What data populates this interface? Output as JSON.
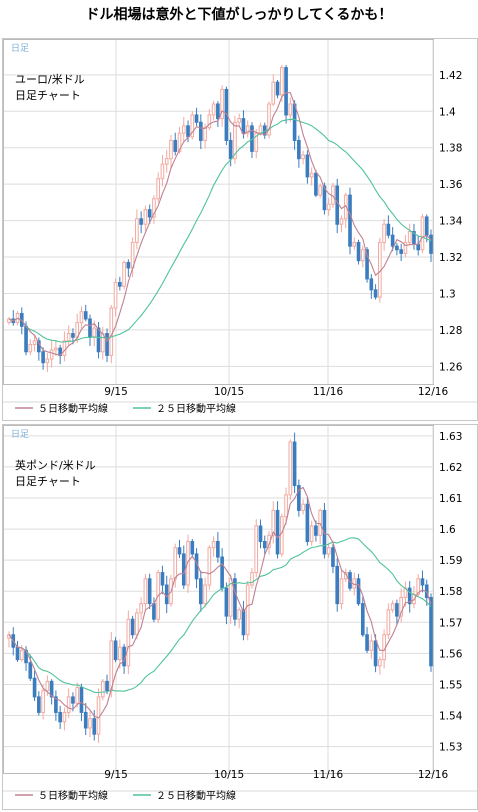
{
  "headline": "ドル相場は意外と下値がしっかりしてくるかも！",
  "colors": {
    "up": "#f2a9a0",
    "down": "#3b7dbf",
    "ma5": "#c08090",
    "ma25": "#4fc39a",
    "grid": "#dddddd",
    "tag": "#7fb2da"
  },
  "chart_data": [
    {
      "type": "candlestick",
      "tag": "日足",
      "caption_line1": "ユーロ/米ドル",
      "caption_line2": "日足チャート",
      "x_labels": [
        "9/15",
        "10/15",
        "11/16",
        "12/16"
      ],
      "y_ticks": [
        "1.26",
        "1.28",
        "1.3",
        "1.32",
        "1.34",
        "1.36",
        "1.38",
        "1.4",
        "1.42"
      ],
      "ylim": [
        1.2525,
        1.4375
      ],
      "legend": [
        "５日移動平均線",
        "２５日移動平均線"
      ],
      "close": [
        1.286,
        1.284,
        1.289,
        1.282,
        1.268,
        1.272,
        1.274,
        1.268,
        1.262,
        1.264,
        1.269,
        1.27,
        1.266,
        1.274,
        1.278,
        1.276,
        1.284,
        1.29,
        1.286,
        1.276,
        1.281,
        1.268,
        1.278,
        1.266,
        1.292,
        1.306,
        1.304,
        1.317,
        1.314,
        1.328,
        1.341,
        1.338,
        1.346,
        1.342,
        1.352,
        1.363,
        1.371,
        1.374,
        1.384,
        1.378,
        1.388,
        1.392,
        1.386,
        1.398,
        1.394,
        1.384,
        1.391,
        1.398,
        1.404,
        1.396,
        1.412,
        1.384,
        1.374,
        1.394,
        1.396,
        1.388,
        1.392,
        1.378,
        1.388,
        1.392,
        1.387,
        1.404,
        1.416,
        1.409,
        1.424,
        1.398,
        1.404,
        1.384,
        1.374,
        1.376,
        1.364,
        1.366,
        1.354,
        1.359,
        1.346,
        1.349,
        1.359,
        1.338,
        1.341,
        1.354,
        1.326,
        1.328,
        1.318,
        1.324,
        1.308,
        1.302,
        1.298,
        1.328,
        1.338,
        1.332,
        1.326,
        1.324,
        1.322,
        1.328,
        1.334,
        1.327,
        1.324,
        1.342,
        1.332,
        1.322
      ]
    },
    {
      "type": "candlestick",
      "tag": "日足",
      "caption_line1": "英ポンド/米ドル",
      "caption_line2": "日足チャート",
      "x_labels": [
        "9/15",
        "10/15",
        "11/16",
        "12/16"
      ],
      "y_ticks": [
        "1.53",
        "1.54",
        "1.55",
        "1.56",
        "1.57",
        "1.58",
        "1.59",
        "1.6",
        "1.61",
        "1.62",
        "1.63"
      ],
      "ylim": [
        1.5228,
        1.6322
      ],
      "legend": [
        "５日移動平均線",
        "２５日移動平均線"
      ],
      "close": [
        1.566,
        1.562,
        1.558,
        1.561,
        1.557,
        1.552,
        1.546,
        1.541,
        1.548,
        1.551,
        1.546,
        1.541,
        1.538,
        1.541,
        1.546,
        1.544,
        1.549,
        1.541,
        1.536,
        1.539,
        1.534,
        1.546,
        1.551,
        1.548,
        1.564,
        1.558,
        1.562,
        1.556,
        1.571,
        1.566,
        1.573,
        1.576,
        1.584,
        1.576,
        1.571,
        1.586,
        1.582,
        1.576,
        1.584,
        1.594,
        1.592,
        1.582,
        1.596,
        1.592,
        1.584,
        1.576,
        1.582,
        1.594,
        1.596,
        1.591,
        1.581,
        1.572,
        1.584,
        1.571,
        1.574,
        1.566,
        1.582,
        1.586,
        1.601,
        1.596,
        1.594,
        1.598,
        1.606,
        1.592,
        1.604,
        1.611,
        1.628,
        1.614,
        1.606,
        1.608,
        1.596,
        1.601,
        1.598,
        1.606,
        1.592,
        1.594,
        1.588,
        1.576,
        1.584,
        1.586,
        1.581,
        1.584,
        1.576,
        1.566,
        1.561,
        1.564,
        1.556,
        1.558,
        1.566,
        1.574,
        1.576,
        1.572,
        1.578,
        1.581,
        1.576,
        1.579,
        1.584,
        1.582,
        1.578,
        1.556
      ]
    }
  ]
}
